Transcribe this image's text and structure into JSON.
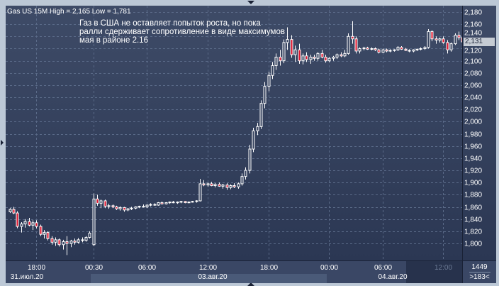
{
  "chart_data": {
    "type": "candlestick",
    "title": "Gas US 15M High = 2,165 Low = 1,781",
    "annotation": "Газ в США не оставляет попыток роста, но пока ралли сдерживает сопротивление в виде максимумов мая в районе 2.16",
    "ylim": [
      1.78,
      2.185
    ],
    "y_ticks": [
      "2,180",
      "2,160",
      "2,140",
      "2,120",
      "2,100",
      "2,080",
      "2,060",
      "2,040",
      "2,020",
      "2,000",
      "1,980",
      "1,960",
      "1,940",
      "1,920",
      "1,900",
      "1,880",
      "1,860",
      "1,840",
      "1,820",
      "1,800"
    ],
    "y_tick_values": [
      2.18,
      2.16,
      2.14,
      2.12,
      2.1,
      2.08,
      2.06,
      2.04,
      2.02,
      2.0,
      1.98,
      1.96,
      1.94,
      1.92,
      1.9,
      1.88,
      1.86,
      1.84,
      1.82,
      1.8
    ],
    "x_ticks": [
      "18:00",
      "00:30",
      "06:00",
      "12:00",
      "18:00",
      "00:00",
      "06:00",
      "12:00"
    ],
    "x_tick_candle_index": [
      7,
      22,
      36,
      52,
      68,
      84,
      98,
      114
    ],
    "date_labels": [
      "31.июл.20",
      "03.авг.20",
      "04.авг.20"
    ],
    "current_price": "2,131",
    "grid": true,
    "colors": {
      "up": "#ffffff",
      "down": "#e0102a",
      "wick": "#ffffff",
      "grid": "#5a6a88"
    },
    "candles_ohlc": [
      [
        1.852,
        1.858,
        1.85,
        1.856
      ],
      [
        1.856,
        1.86,
        1.848,
        1.85
      ],
      [
        1.85,
        1.853,
        1.825,
        1.828
      ],
      [
        1.828,
        1.835,
        1.818,
        1.832
      ],
      [
        1.832,
        1.84,
        1.826,
        1.836
      ],
      [
        1.836,
        1.842,
        1.828,
        1.83
      ],
      [
        1.83,
        1.838,
        1.822,
        1.834
      ],
      [
        1.834,
        1.838,
        1.825,
        1.828
      ],
      [
        1.828,
        1.831,
        1.812,
        1.815
      ],
      [
        1.815,
        1.822,
        1.808,
        1.818
      ],
      [
        1.818,
        1.82,
        1.805,
        1.808
      ],
      [
        1.808,
        1.812,
        1.798,
        1.802
      ],
      [
        1.802,
        1.81,
        1.796,
        1.806
      ],
      [
        1.806,
        1.808,
        1.795,
        1.798
      ],
      [
        1.798,
        1.806,
        1.79,
        1.803
      ],
      [
        1.803,
        1.812,
        1.781,
        1.8
      ],
      [
        1.8,
        1.806,
        1.794,
        1.804
      ],
      [
        1.804,
        1.808,
        1.798,
        1.802
      ],
      [
        1.802,
        1.809,
        1.8,
        1.806
      ],
      [
        1.806,
        1.81,
        1.802,
        1.805
      ],
      [
        1.805,
        1.812,
        1.803,
        1.81
      ],
      [
        1.81,
        1.82,
        1.808,
        1.817
      ],
      [
        1.798,
        1.882,
        1.796,
        1.873
      ],
      [
        1.873,
        1.88,
        1.862,
        1.866
      ],
      [
        1.866,
        1.872,
        1.858,
        1.87
      ],
      [
        1.87,
        1.872,
        1.858,
        1.861
      ],
      [
        1.861,
        1.865,
        1.857,
        1.862
      ],
      [
        1.862,
        1.864,
        1.858,
        1.86
      ],
      [
        1.86,
        1.862,
        1.855,
        1.857
      ],
      [
        1.857,
        1.861,
        1.854,
        1.859
      ],
      [
        1.859,
        1.86,
        1.852,
        1.855
      ],
      [
        1.855,
        1.858,
        1.853,
        1.857
      ],
      [
        1.857,
        1.86,
        1.855,
        1.858
      ],
      [
        1.858,
        1.861,
        1.856,
        1.86
      ],
      [
        1.86,
        1.862,
        1.858,
        1.861
      ],
      [
        1.861,
        1.864,
        1.859,
        1.86
      ],
      [
        1.86,
        1.864,
        1.858,
        1.863
      ],
      [
        1.863,
        1.866,
        1.861,
        1.864
      ],
      [
        1.864,
        1.866,
        1.862,
        1.863
      ],
      [
        1.863,
        1.868,
        1.862,
        1.867
      ],
      [
        1.867,
        1.869,
        1.864,
        1.865
      ],
      [
        1.865,
        1.868,
        1.864,
        1.867
      ],
      [
        1.867,
        1.869,
        1.865,
        1.868
      ],
      [
        1.868,
        1.87,
        1.866,
        1.867
      ],
      [
        1.867,
        1.869,
        1.865,
        1.868
      ],
      [
        1.868,
        1.87,
        1.866,
        1.869
      ],
      [
        1.869,
        1.87,
        1.866,
        1.867
      ],
      [
        1.867,
        1.869,
        1.866,
        1.868
      ],
      [
        1.868,
        1.87,
        1.867,
        1.869
      ],
      [
        1.869,
        1.871,
        1.867,
        1.87
      ],
      [
        1.87,
        1.906,
        1.869,
        1.898
      ],
      [
        1.898,
        1.904,
        1.894,
        1.896
      ],
      [
        1.896,
        1.9,
        1.893,
        1.898
      ],
      [
        1.898,
        1.901,
        1.894,
        1.895
      ],
      [
        1.895,
        1.899,
        1.892,
        1.897
      ],
      [
        1.897,
        1.9,
        1.893,
        1.894
      ],
      [
        1.894,
        1.898,
        1.89,
        1.896
      ],
      [
        1.896,
        1.899,
        1.888,
        1.892
      ],
      [
        1.892,
        1.897,
        1.889,
        1.895
      ],
      [
        1.895,
        1.899,
        1.891,
        1.893
      ],
      [
        1.893,
        1.9,
        1.89,
        1.898
      ],
      [
        1.898,
        1.915,
        1.895,
        1.91
      ],
      [
        1.91,
        1.925,
        1.905,
        1.92
      ],
      [
        1.92,
        1.962,
        1.915,
        1.955
      ],
      [
        1.955,
        1.99,
        1.95,
        1.985
      ],
      [
        1.985,
        1.998,
        1.978,
        1.992
      ],
      [
        1.992,
        2.035,
        1.988,
        2.03
      ],
      [
        2.03,
        2.065,
        2.022,
        2.058
      ],
      [
        2.058,
        2.082,
        2.05,
        2.076
      ],
      [
        2.076,
        2.098,
        2.07,
        2.092
      ],
      [
        2.092,
        2.112,
        2.085,
        2.106
      ],
      [
        2.106,
        2.118,
        2.092,
        2.1
      ],
      [
        2.1,
        2.135,
        2.096,
        2.13
      ],
      [
        2.13,
        2.155,
        2.118,
        2.135
      ],
      [
        2.135,
        2.142,
        2.105,
        2.11
      ],
      [
        2.11,
        2.125,
        2.098,
        2.118
      ],
      [
        2.118,
        2.128,
        2.095,
        2.1
      ],
      [
        2.1,
        2.112,
        2.094,
        2.108
      ],
      [
        2.108,
        2.114,
        2.098,
        2.102
      ],
      [
        2.102,
        2.11,
        2.095,
        2.106
      ],
      [
        2.106,
        2.11,
        2.1,
        2.104
      ],
      [
        2.104,
        2.114,
        2.1,
        2.112
      ],
      [
        2.112,
        2.118,
        2.104,
        2.106
      ],
      [
        2.106,
        2.11,
        2.097,
        2.1
      ],
      [
        2.1,
        2.106,
        2.098,
        2.104
      ],
      [
        2.104,
        2.108,
        2.1,
        2.106
      ],
      [
        2.106,
        2.112,
        2.103,
        2.11
      ],
      [
        2.11,
        2.114,
        2.106,
        2.108
      ],
      [
        2.108,
        2.118,
        2.106,
        2.112
      ],
      [
        2.112,
        2.145,
        2.11,
        2.14
      ],
      [
        2.14,
        2.165,
        2.128,
        2.136
      ],
      [
        2.136,
        2.14,
        2.112,
        2.116
      ],
      [
        2.116,
        2.122,
        2.112,
        2.12
      ],
      [
        2.12,
        2.123,
        2.117,
        2.121
      ],
      [
        2.121,
        2.123,
        2.118,
        2.119
      ],
      [
        2.119,
        2.122,
        2.117,
        2.12
      ],
      [
        2.12,
        2.122,
        2.116,
        2.118
      ],
      [
        2.118,
        2.12,
        2.112,
        2.114
      ],
      [
        2.114,
        2.12,
        2.113,
        2.118
      ],
      [
        2.118,
        2.12,
        2.114,
        2.116
      ],
      [
        2.116,
        2.119,
        2.114,
        2.117
      ],
      [
        2.117,
        2.119,
        2.115,
        2.118
      ],
      [
        2.118,
        2.124,
        2.116,
        2.122
      ],
      [
        2.122,
        2.124,
        2.118,
        2.119
      ],
      [
        2.119,
        2.121,
        2.116,
        2.117
      ],
      [
        2.117,
        2.119,
        2.114,
        2.116
      ],
      [
        2.116,
        2.119,
        2.114,
        2.118
      ],
      [
        2.118,
        2.12,
        2.116,
        2.119
      ],
      [
        2.119,
        2.122,
        2.117,
        2.12
      ],
      [
        2.12,
        2.124,
        2.118,
        2.122
      ],
      [
        2.122,
        2.152,
        2.12,
        2.148
      ],
      [
        2.148,
        2.15,
        2.132,
        2.136
      ],
      [
        2.136,
        2.14,
        2.128,
        2.134
      ],
      [
        2.134,
        2.138,
        2.13,
        2.136
      ],
      [
        2.136,
        2.14,
        2.128,
        2.13
      ],
      [
        2.13,
        2.134,
        2.112,
        2.118
      ],
      [
        2.118,
        2.13,
        2.115,
        2.128
      ],
      [
        2.128,
        2.145,
        2.126,
        2.142
      ],
      [
        2.142,
        2.148,
        2.134,
        2.138
      ],
      [
        2.138,
        2.14,
        2.125,
        2.131
      ]
    ]
  },
  "status": {
    "bar_count": "1449",
    "visible_bars": ">183<"
  }
}
